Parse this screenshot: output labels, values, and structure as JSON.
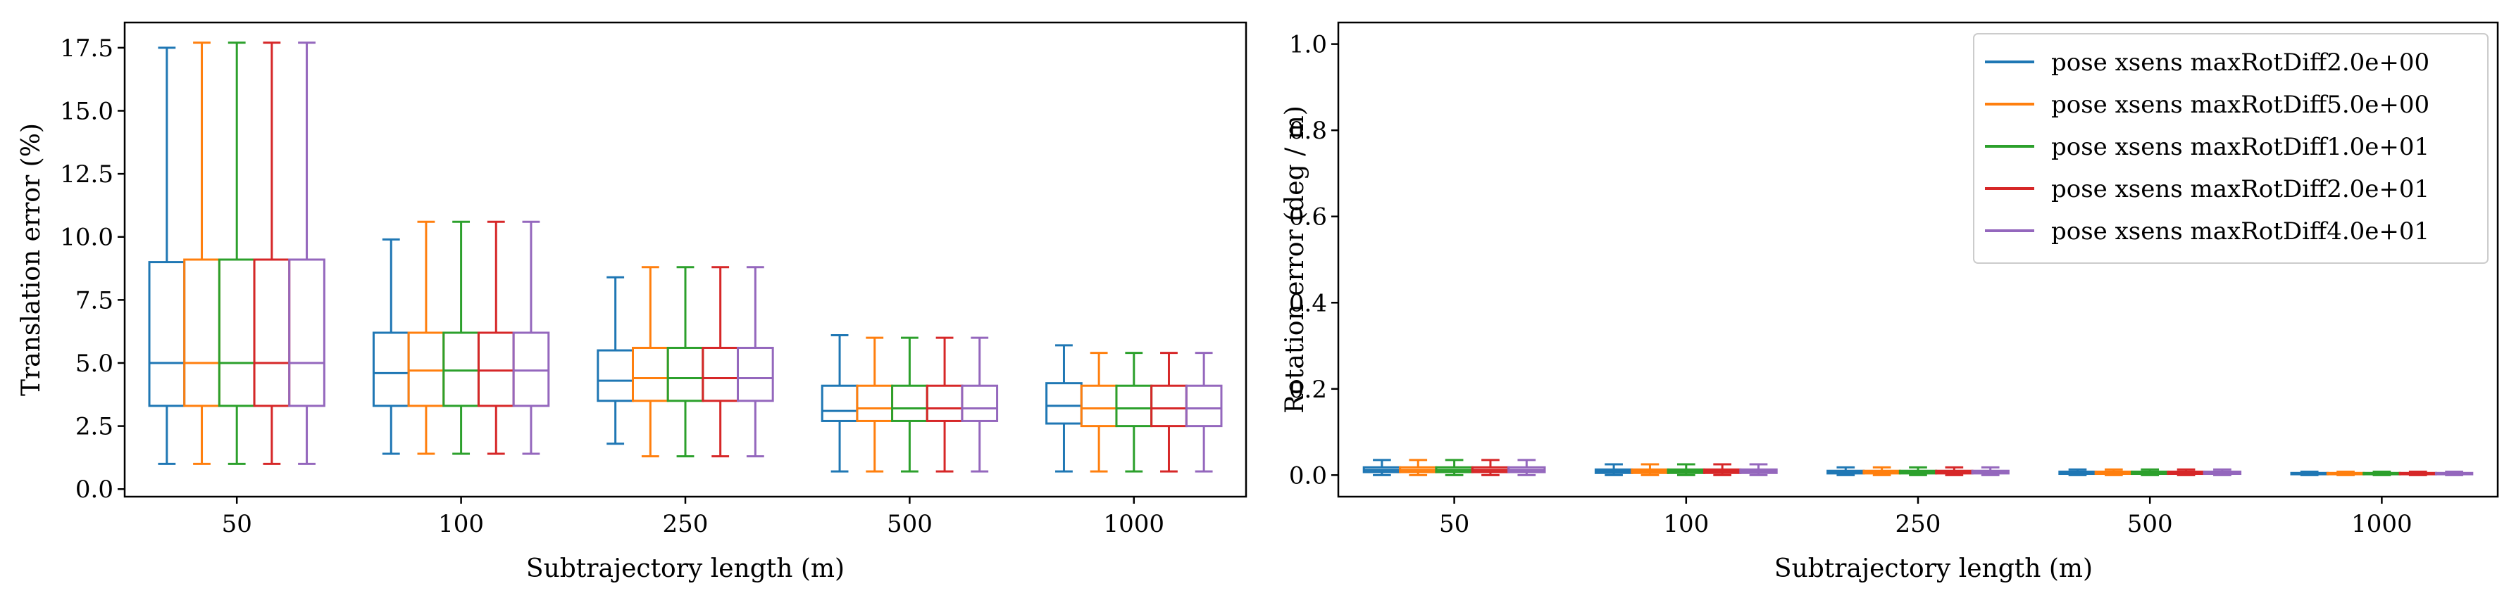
{
  "chart_data": [
    {
      "type": "box",
      "xlabel": "Subtrajectory length (m)",
      "ylabel": "Translation error (%)",
      "categories": [
        "50",
        "100",
        "250",
        "500",
        "1000"
      ],
      "ylim": [
        -0.3,
        18.5
      ],
      "yticks": [
        0.0,
        2.5,
        5.0,
        7.5,
        10.0,
        12.5,
        15.0,
        17.5
      ],
      "ytick_labels": [
        "0.0",
        "2.5",
        "5.0",
        "7.5",
        "10.0",
        "12.5",
        "15.0",
        "17.5"
      ],
      "legend": "none",
      "grid": false,
      "series": [
        {
          "color": "#1f77b4",
          "boxes": [
            {
              "whislo": 1.0,
              "q1": 3.3,
              "med": 5.0,
              "q3": 9.0,
              "whishi": 17.5
            },
            {
              "whislo": 1.4,
              "q1": 3.3,
              "med": 4.6,
              "q3": 6.2,
              "whishi": 9.9
            },
            {
              "whislo": 1.8,
              "q1": 3.5,
              "med": 4.3,
              "q3": 5.5,
              "whishi": 8.4
            },
            {
              "whislo": 0.7,
              "q1": 2.7,
              "med": 3.1,
              "q3": 4.1,
              "whishi": 6.1
            },
            {
              "whislo": 0.7,
              "q1": 2.6,
              "med": 3.3,
              "q3": 4.2,
              "whishi": 5.7
            }
          ]
        },
        {
          "color": "#ff7f0e",
          "boxes": [
            {
              "whislo": 1.0,
              "q1": 3.3,
              "med": 5.0,
              "q3": 9.1,
              "whishi": 17.7
            },
            {
              "whislo": 1.4,
              "q1": 3.3,
              "med": 4.7,
              "q3": 6.2,
              "whishi": 10.6
            },
            {
              "whislo": 1.3,
              "q1": 3.5,
              "med": 4.4,
              "q3": 5.6,
              "whishi": 8.8
            },
            {
              "whislo": 0.7,
              "q1": 2.7,
              "med": 3.2,
              "q3": 4.1,
              "whishi": 6.0
            },
            {
              "whislo": 0.7,
              "q1": 2.5,
              "med": 3.2,
              "q3": 4.1,
              "whishi": 5.4
            }
          ]
        },
        {
          "color": "#2ca02c",
          "boxes": [
            {
              "whislo": 1.0,
              "q1": 3.3,
              "med": 5.0,
              "q3": 9.1,
              "whishi": 17.7
            },
            {
              "whislo": 1.4,
              "q1": 3.3,
              "med": 4.7,
              "q3": 6.2,
              "whishi": 10.6
            },
            {
              "whislo": 1.3,
              "q1": 3.5,
              "med": 4.4,
              "q3": 5.6,
              "whishi": 8.8
            },
            {
              "whislo": 0.7,
              "q1": 2.7,
              "med": 3.2,
              "q3": 4.1,
              "whishi": 6.0
            },
            {
              "whislo": 0.7,
              "q1": 2.5,
              "med": 3.2,
              "q3": 4.1,
              "whishi": 5.4
            }
          ]
        },
        {
          "color": "#d62728",
          "boxes": [
            {
              "whislo": 1.0,
              "q1": 3.3,
              "med": 5.0,
              "q3": 9.1,
              "whishi": 17.7
            },
            {
              "whislo": 1.4,
              "q1": 3.3,
              "med": 4.7,
              "q3": 6.2,
              "whishi": 10.6
            },
            {
              "whislo": 1.3,
              "q1": 3.5,
              "med": 4.4,
              "q3": 5.6,
              "whishi": 8.8
            },
            {
              "whislo": 0.7,
              "q1": 2.7,
              "med": 3.2,
              "q3": 4.1,
              "whishi": 6.0
            },
            {
              "whislo": 0.7,
              "q1": 2.5,
              "med": 3.2,
              "q3": 4.1,
              "whishi": 5.4
            }
          ]
        },
        {
          "color": "#9467bd",
          "boxes": [
            {
              "whislo": 1.0,
              "q1": 3.3,
              "med": 5.0,
              "q3": 9.1,
              "whishi": 17.7
            },
            {
              "whislo": 1.4,
              "q1": 3.3,
              "med": 4.7,
              "q3": 6.2,
              "whishi": 10.6
            },
            {
              "whislo": 1.3,
              "q1": 3.5,
              "med": 4.4,
              "q3": 5.6,
              "whishi": 8.8
            },
            {
              "whislo": 0.7,
              "q1": 2.7,
              "med": 3.2,
              "q3": 4.1,
              "whishi": 6.0
            },
            {
              "whislo": 0.7,
              "q1": 2.5,
              "med": 3.2,
              "q3": 4.1,
              "whishi": 5.4
            }
          ]
        }
      ]
    },
    {
      "type": "box",
      "xlabel": "Subtrajectory length (m)",
      "ylabel": "Rotation error (deg / m)",
      "categories": [
        "50",
        "100",
        "250",
        "500",
        "1000"
      ],
      "ylim": [
        -0.05,
        1.05
      ],
      "yticks": [
        0.0,
        0.2,
        0.4,
        0.6,
        0.8,
        1.0
      ],
      "ytick_labels": [
        "0.0",
        "0.2",
        "0.4",
        "0.6",
        "0.8",
        "1.0"
      ],
      "legend": "upper right",
      "grid": false,
      "series": [
        {
          "name": "pose xsens maxRotDiff2.0e+00",
          "color": "#1f77b4",
          "boxes": [
            {
              "whislo": 0.0,
              "q1": 0.007,
              "med": 0.012,
              "q3": 0.018,
              "whishi": 0.035
            },
            {
              "whislo": 0.0,
              "q1": 0.005,
              "med": 0.009,
              "q3": 0.013,
              "whishi": 0.025
            },
            {
              "whislo": 0.0,
              "q1": 0.004,
              "med": 0.007,
              "q3": 0.01,
              "whishi": 0.018
            },
            {
              "whislo": 0.0,
              "q1": 0.003,
              "med": 0.005,
              "q3": 0.008,
              "whishi": 0.013
            },
            {
              "whislo": 0.0,
              "q1": 0.002,
              "med": 0.003,
              "q3": 0.005,
              "whishi": 0.008
            }
          ]
        },
        {
          "name": "pose xsens maxRotDiff5.0e+00",
          "color": "#ff7f0e",
          "boxes": [
            {
              "whislo": 0.0,
              "q1": 0.007,
              "med": 0.012,
              "q3": 0.018,
              "whishi": 0.035
            },
            {
              "whislo": 0.0,
              "q1": 0.005,
              "med": 0.009,
              "q3": 0.013,
              "whishi": 0.025
            },
            {
              "whislo": 0.0,
              "q1": 0.004,
              "med": 0.007,
              "q3": 0.01,
              "whishi": 0.018
            },
            {
              "whislo": 0.0,
              "q1": 0.003,
              "med": 0.005,
              "q3": 0.008,
              "whishi": 0.013
            },
            {
              "whislo": 0.0,
              "q1": 0.002,
              "med": 0.003,
              "q3": 0.005,
              "whishi": 0.008
            }
          ]
        },
        {
          "name": "pose xsens maxRotDiff1.0e+01",
          "color": "#2ca02c",
          "boxes": [
            {
              "whislo": 0.0,
              "q1": 0.007,
              "med": 0.012,
              "q3": 0.018,
              "whishi": 0.035
            },
            {
              "whislo": 0.0,
              "q1": 0.005,
              "med": 0.009,
              "q3": 0.013,
              "whishi": 0.025
            },
            {
              "whislo": 0.0,
              "q1": 0.004,
              "med": 0.007,
              "q3": 0.01,
              "whishi": 0.018
            },
            {
              "whislo": 0.0,
              "q1": 0.003,
              "med": 0.005,
              "q3": 0.008,
              "whishi": 0.013
            },
            {
              "whislo": 0.0,
              "q1": 0.002,
              "med": 0.003,
              "q3": 0.005,
              "whishi": 0.008
            }
          ]
        },
        {
          "name": "pose xsens maxRotDiff2.0e+01",
          "color": "#d62728",
          "boxes": [
            {
              "whislo": 0.0,
              "q1": 0.007,
              "med": 0.012,
              "q3": 0.018,
              "whishi": 0.035
            },
            {
              "whislo": 0.0,
              "q1": 0.005,
              "med": 0.009,
              "q3": 0.013,
              "whishi": 0.025
            },
            {
              "whislo": 0.0,
              "q1": 0.004,
              "med": 0.007,
              "q3": 0.01,
              "whishi": 0.018
            },
            {
              "whislo": 0.0,
              "q1": 0.003,
              "med": 0.005,
              "q3": 0.008,
              "whishi": 0.013
            },
            {
              "whislo": 0.0,
              "q1": 0.002,
              "med": 0.003,
              "q3": 0.005,
              "whishi": 0.008
            }
          ]
        },
        {
          "name": "pose xsens maxRotDiff4.0e+01",
          "color": "#9467bd",
          "boxes": [
            {
              "whislo": 0.0,
              "q1": 0.007,
              "med": 0.012,
              "q3": 0.018,
              "whishi": 0.035
            },
            {
              "whislo": 0.0,
              "q1": 0.005,
              "med": 0.009,
              "q3": 0.013,
              "whishi": 0.025
            },
            {
              "whislo": 0.0,
              "q1": 0.004,
              "med": 0.007,
              "q3": 0.01,
              "whishi": 0.018
            },
            {
              "whislo": 0.0,
              "q1": 0.003,
              "med": 0.005,
              "q3": 0.008,
              "whishi": 0.013
            },
            {
              "whislo": 0.0,
              "q1": 0.002,
              "med": 0.003,
              "q3": 0.005,
              "whishi": 0.008
            }
          ]
        }
      ]
    }
  ]
}
